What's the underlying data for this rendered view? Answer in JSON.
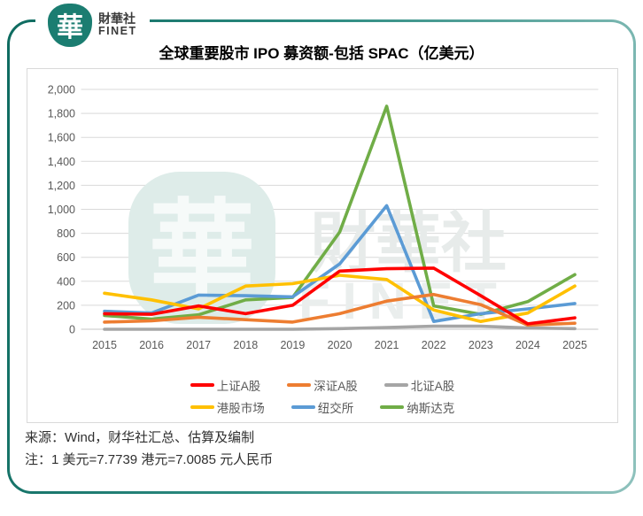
{
  "brand": {
    "logo_glyph": "華",
    "name_cn": "財華社",
    "name_en": "FINET"
  },
  "title": "全球重要股市 IPO 募资额-包括 SPAC（亿美元）",
  "source_line": "来源：Wind，财华社汇总、估算及编制",
  "note_line": "注：1 美元=7.7739 港元=7.0085 元人民币",
  "watermark": {
    "glyph": "華",
    "text_cn": "財華社",
    "text_en": "FINET"
  },
  "colors": {
    "border_teal_dark": "#0e6b60",
    "border_teal_light": "#8fc2bd",
    "logo_teal": "#1b7d71",
    "gridline": "#d9d9d9",
    "axis_text": "#595959"
  },
  "chart_data": {
    "type": "line",
    "title": "全球重要股市 IPO 募资额-包括 SPAC（亿美元）",
    "xlabel": "",
    "ylabel": "",
    "categories": [
      "2015",
      "2016",
      "2017",
      "2018",
      "2019",
      "2020",
      "2021",
      "2022",
      "2023",
      "2024",
      "2025"
    ],
    "series": [
      {
        "name": "上证A股",
        "color": "#ff0000",
        "values": [
          130,
          125,
          195,
          130,
          200,
          485,
          505,
          510,
          280,
          45,
          95
        ]
      },
      {
        "name": "深证A股",
        "color": "#ed7d31",
        "values": [
          60,
          70,
          100,
          80,
          60,
          130,
          235,
          290,
          205,
          35,
          50
        ]
      },
      {
        "name": "北证A股",
        "color": "#a5a5a5",
        "values": [
          0,
          0,
          0,
          0,
          0,
          5,
          15,
          25,
          25,
          10,
          5
        ]
      },
      {
        "name": "港股市场",
        "color": "#ffc000",
        "values": [
          300,
          245,
          170,
          360,
          380,
          450,
          415,
          160,
          65,
          135,
          360
        ]
      },
      {
        "name": "纽交所",
        "color": "#5b9bd5",
        "values": [
          150,
          135,
          285,
          280,
          270,
          545,
          1030,
          65,
          130,
          170,
          215
        ]
      },
      {
        "name": "纳斯达克",
        "color": "#70ad47",
        "values": [
          115,
          85,
          120,
          245,
          265,
          810,
          1860,
          195,
          125,
          230,
          455
        ]
      }
    ],
    "ylim": [
      0,
      2000
    ],
    "ytick_step": 200,
    "grid": true,
    "legend_position": "bottom",
    "legend_rows": [
      [
        0,
        1,
        2
      ],
      [
        3,
        4,
        5
      ]
    ]
  }
}
